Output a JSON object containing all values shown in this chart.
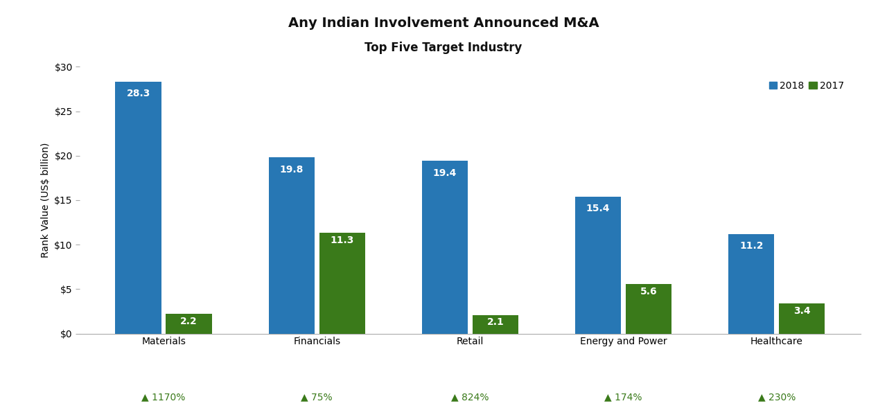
{
  "title_line1": "Any Indian Involvement Announced M&A",
  "title_line2": "Top Five Target Industry",
  "categories": [
    "Materials",
    "Financials",
    "Retail",
    "Energy and Power",
    "Healthcare"
  ],
  "values_2018": [
    28.3,
    19.8,
    19.4,
    15.4,
    11.2
  ],
  "values_2017": [
    2.2,
    11.3,
    2.1,
    5.6,
    3.4
  ],
  "growth": [
    "1170%",
    "75%",
    "824%",
    "174%",
    "230%"
  ],
  "color_2018": "#2777B4",
  "color_2017": "#3A7A1A",
  "ylim": [
    0,
    30
  ],
  "yticks": [
    0,
    5,
    10,
    15,
    20,
    25,
    30
  ],
  "ytick_labels": [
    "$0",
    "$5",
    "$10",
    "$15",
    "$20",
    "$25",
    "$30"
  ],
  "ylabel": "Rank Value (US$ billion)",
  "legend_2018": "2018",
  "legend_2017": "2017",
  "bar_value_color": "#ffffff",
  "bar_value_fontsize": 10,
  "title_fontsize": 14,
  "subtitle_fontsize": 12,
  "axis_label_fontsize": 10,
  "tick_label_fontsize": 10,
  "growth_fontsize": 10,
  "growth_color": "#3A7A1A",
  "background_color": "#ffffff",
  "bar_width": 0.3,
  "bar_gap": 0.03
}
